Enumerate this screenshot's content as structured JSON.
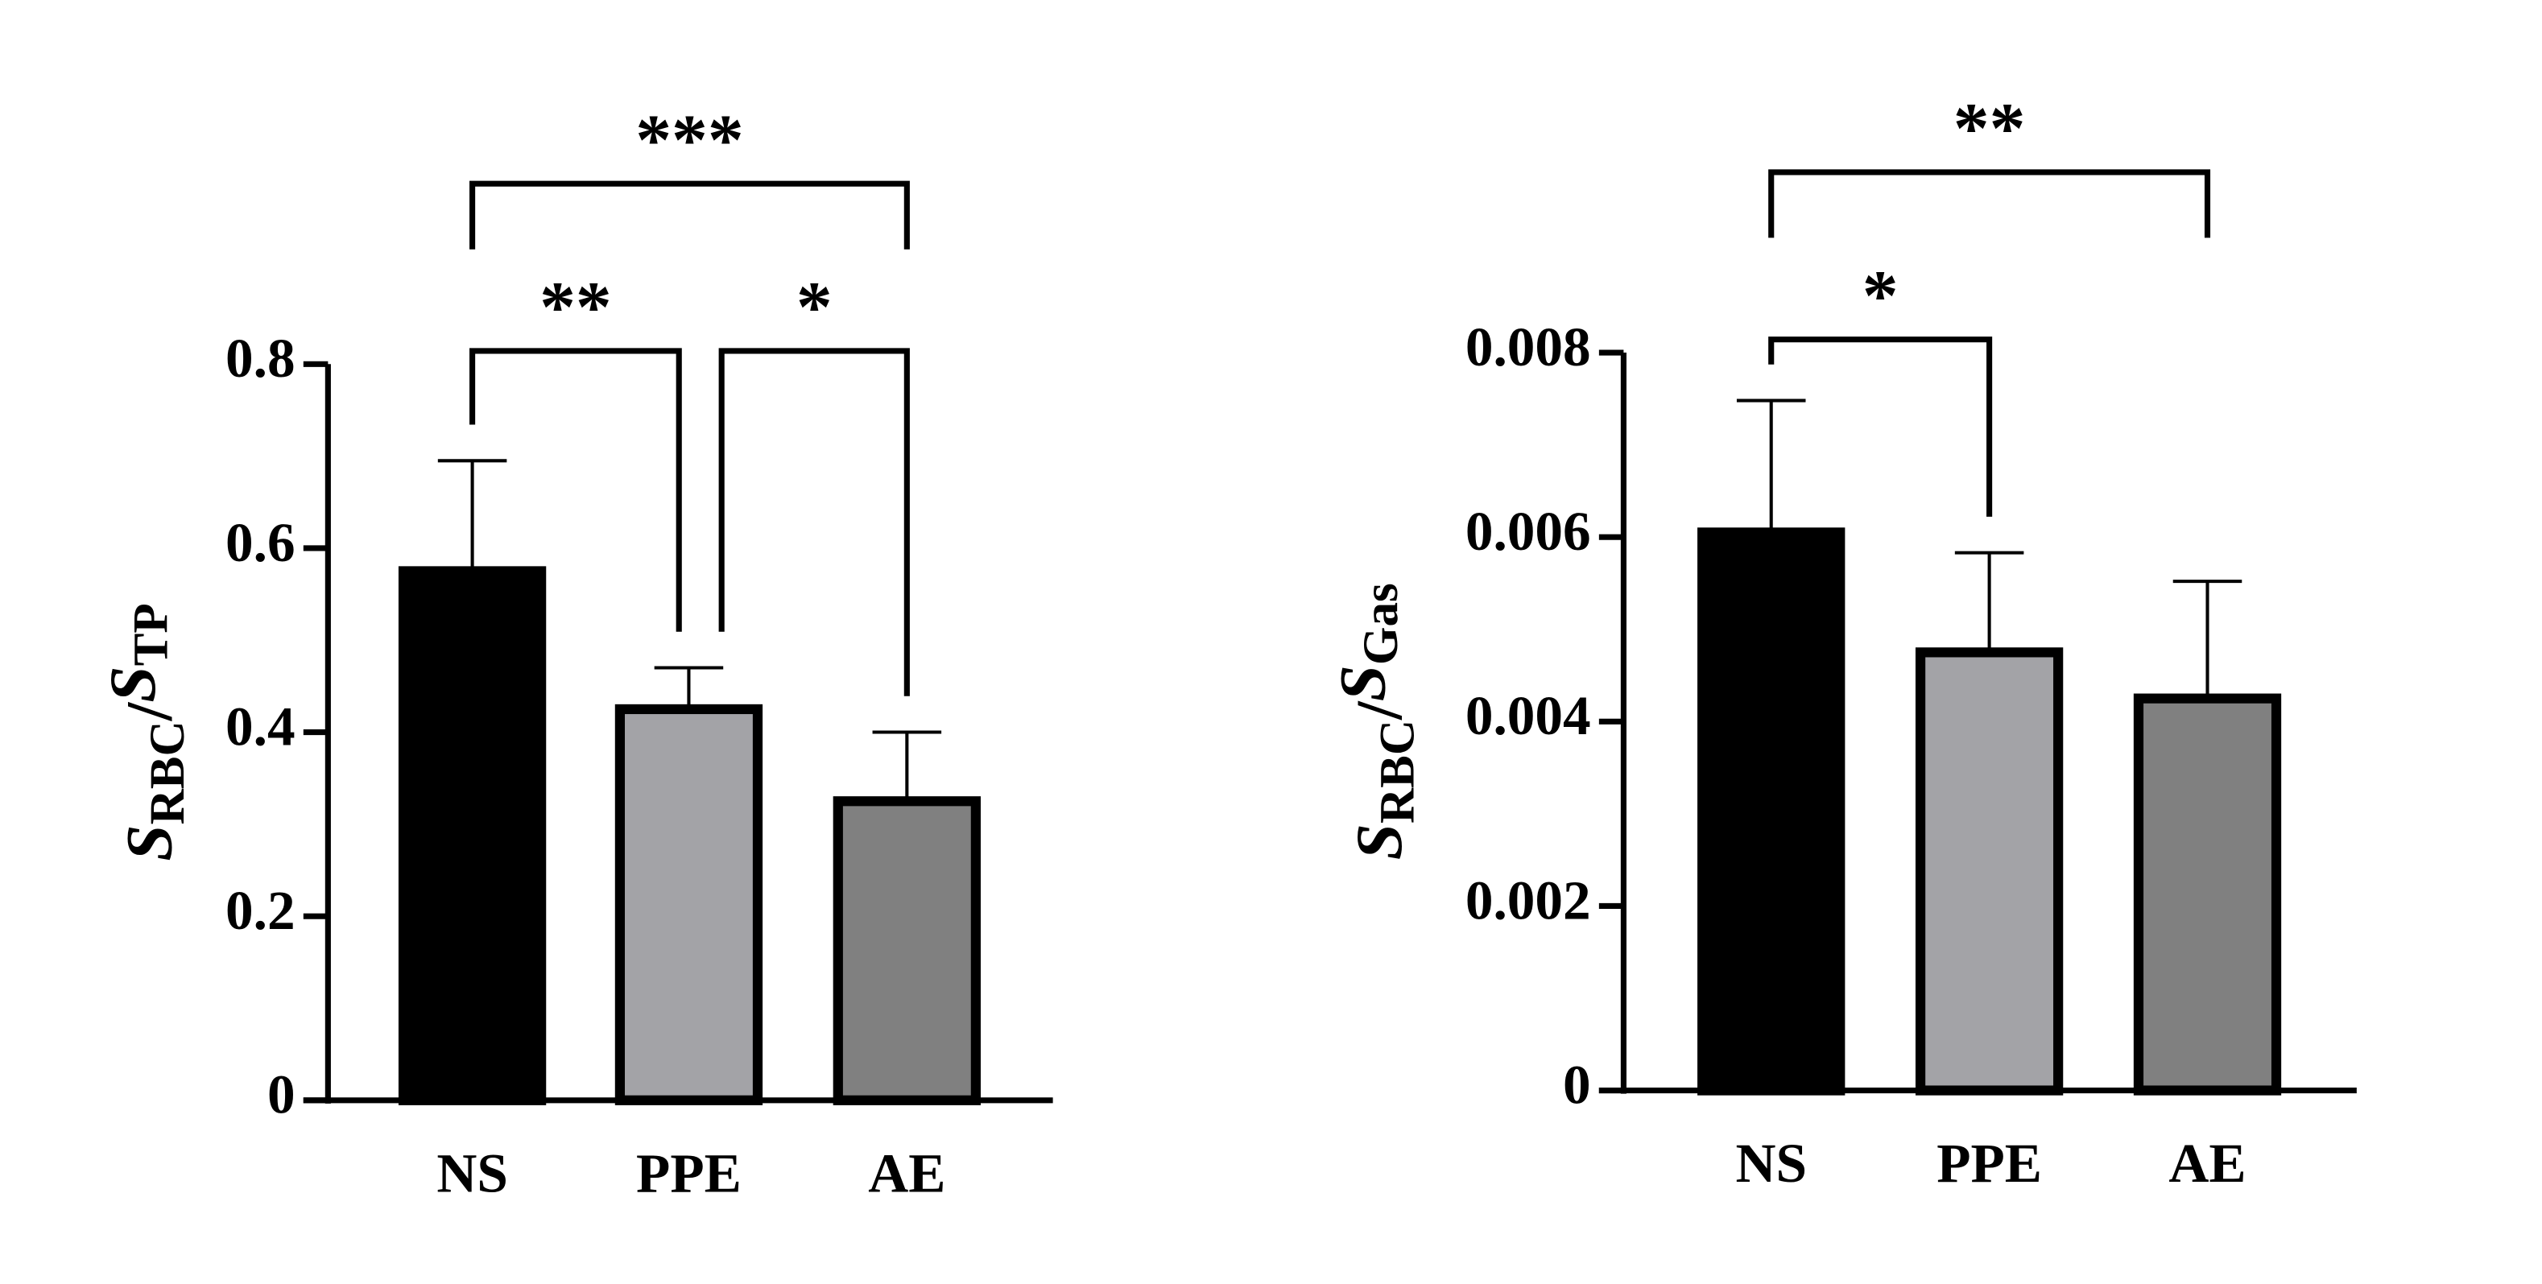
{
  "chart_data": [
    {
      "type": "bar",
      "ylabel": [
        "S",
        "RBC",
        "/",
        "S",
        "TP"
      ],
      "categories": [
        "NS",
        "PPE",
        "AE"
      ],
      "values": [
        0.575,
        0.425,
        0.325
      ],
      "errors": [
        0.12,
        0.045,
        0.075
      ],
      "colors": [
        "#000000",
        "#a3a3a7",
        "#808080"
      ],
      "ylim": [
        0,
        0.8
      ],
      "yticks": [
        0,
        0.2,
        0.4,
        0.6,
        0.8
      ],
      "annotations": [
        {
          "text": "**",
          "from": 0,
          "to": 1
        },
        {
          "text": "*",
          "from": 1,
          "to": 2
        },
        {
          "text": "***",
          "from": 0,
          "to": 2
        }
      ]
    },
    {
      "type": "bar",
      "ylabel": [
        "S",
        "RBC",
        "/",
        "S",
        "Gas"
      ],
      "categories": [
        "NS",
        "PPE",
        "AE"
      ],
      "values": [
        0.00605,
        0.00475,
        0.00425
      ],
      "errors": [
        0.00143,
        0.00108,
        0.00127
      ],
      "colors": [
        "#000000",
        "#a3a3a7",
        "#808080"
      ],
      "ylim": [
        0,
        0.008
      ],
      "yticks": [
        0,
        0.002,
        0.004,
        0.006,
        0.008
      ],
      "annotations": [
        {
          "text": "*",
          "from": 0,
          "to": 1
        },
        {
          "text": "**",
          "from": 0,
          "to": 2
        }
      ]
    }
  ]
}
